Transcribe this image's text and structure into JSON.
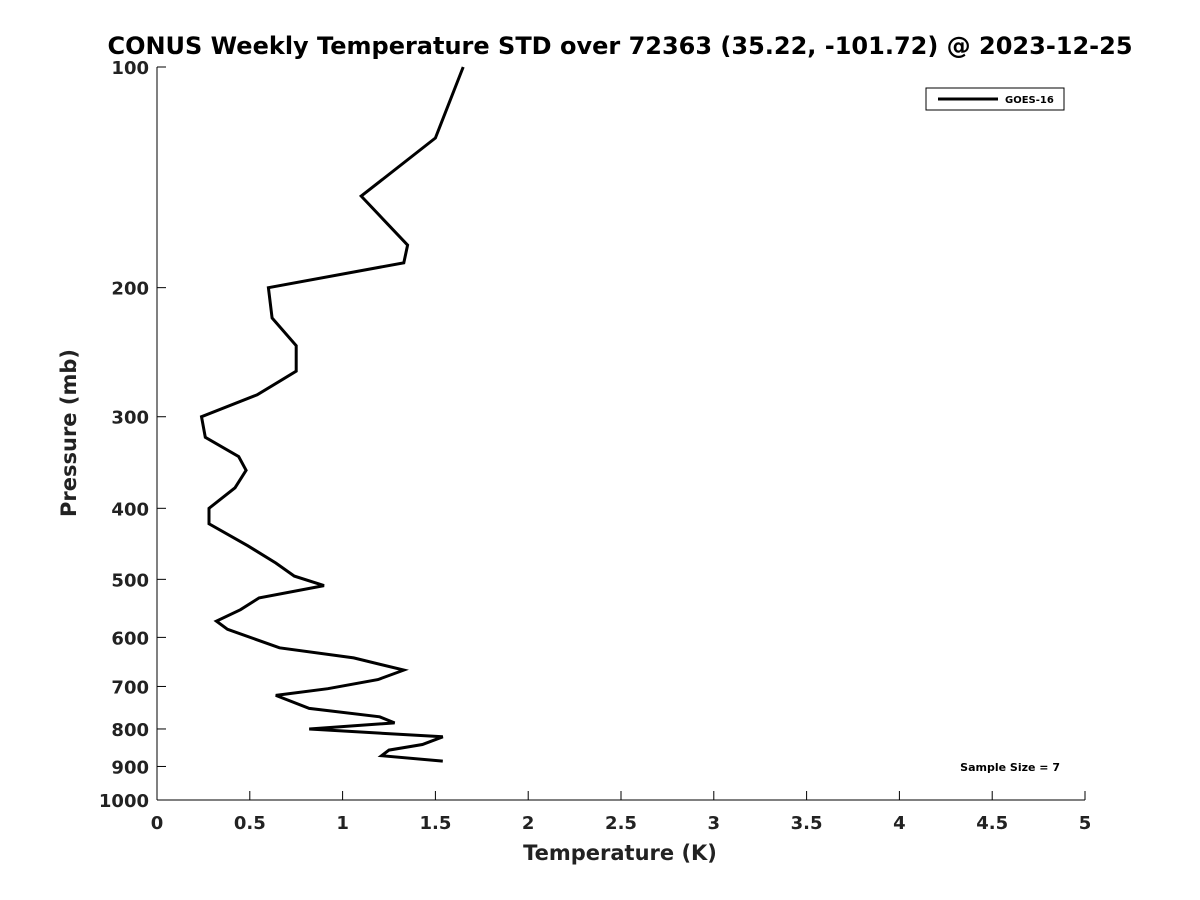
{
  "chart_data": {
    "type": "line",
    "title": "CONUS Weekly Temperature STD over 72363 (35.22, -101.72) @ 2023-12-25",
    "xlabel": "Temperature (K)",
    "ylabel": "Pressure (mb)",
    "xlim": [
      0,
      5
    ],
    "ylim": [
      1000,
      100
    ],
    "yscale": "log",
    "y_reversed": true,
    "xticks": [
      0,
      0.5,
      1,
      1.5,
      2,
      2.5,
      3,
      3.5,
      4,
      4.5,
      5
    ],
    "xtick_labels": [
      "0",
      "0.5",
      "1",
      "1.5",
      "2",
      "2.5",
      "3",
      "3.5",
      "4",
      "4.5",
      "5"
    ],
    "yticks": [
      100,
      200,
      300,
      400,
      500,
      600,
      700,
      800,
      900,
      1000
    ],
    "ytick_labels": [
      "100",
      "200",
      "300",
      "400",
      "500",
      "600",
      "700",
      "800",
      "900",
      "1000"
    ],
    "grid": false,
    "legend_position": "top-right",
    "annotation": "Sample Size = 7",
    "series": [
      {
        "name": "GOES-16",
        "color": "#000000",
        "x": [
          1.65,
          1.5,
          1.1,
          1.35,
          1.33,
          0.6,
          0.62,
          0.75,
          0.75,
          0.54,
          0.24,
          0.26,
          0.44,
          0.48,
          0.42,
          0.28,
          0.28,
          0.49,
          0.64,
          0.74,
          0.9,
          0.55,
          0.45,
          0.32,
          0.38,
          0.66,
          1.06,
          1.33,
          1.19,
          0.92,
          0.64,
          0.82,
          1.2,
          1.28,
          0.82,
          1.54,
          1.43,
          1.25,
          1.21,
          1.54
        ],
        "y": [
          100,
          125,
          150,
          175,
          185,
          200,
          220,
          240,
          260,
          280,
          300,
          320,
          340,
          355,
          375,
          400,
          420,
          450,
          475,
          495,
          510,
          530,
          550,
          570,
          585,
          620,
          640,
          665,
          685,
          705,
          720,
          750,
          770,
          785,
          800,
          820,
          840,
          855,
          870,
          885
        ]
      }
    ]
  }
}
